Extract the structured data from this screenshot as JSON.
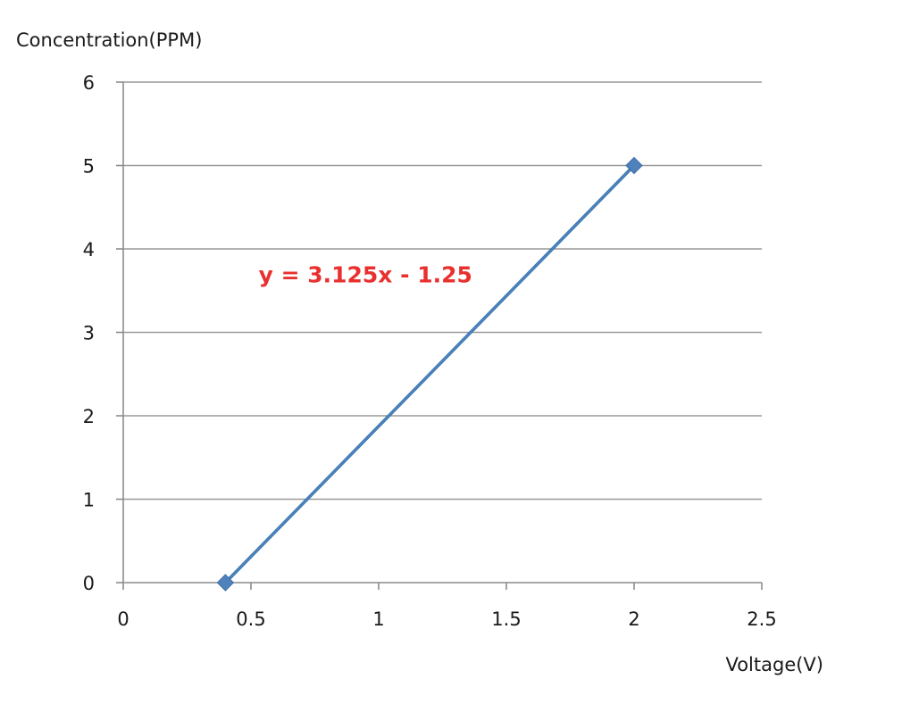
{
  "chart_data": {
    "type": "scatter",
    "xlabel": "Voltage(V)",
    "ylabel": "Concentration(PPM)",
    "xlim": [
      0,
      2.5
    ],
    "ylim": [
      0,
      6
    ],
    "x_ticks": [
      "0",
      "0.5",
      "1",
      "1.5",
      "2",
      "2.5"
    ],
    "y_ticks": [
      "0",
      "1",
      "2",
      "3",
      "4",
      "5",
      "6"
    ],
    "grid": "horizontal",
    "series": [
      {
        "x": [
          0.4,
          2
        ],
        "y": [
          0,
          5
        ],
        "marker": "diamond",
        "color": "#4f81bd"
      }
    ],
    "trendline": {
      "color": "#1f6fa0",
      "slope": 3.125,
      "intercept": -1.25,
      "x_range": [
        0.4,
        2
      ]
    },
    "annotation": {
      "text": "y = 3.125x - 1.25",
      "x": 0.53,
      "y": 3.6,
      "color": "#e8312f"
    },
    "colors": {
      "grid": "#9a9a9a",
      "axis": "#8c8c8c"
    }
  }
}
